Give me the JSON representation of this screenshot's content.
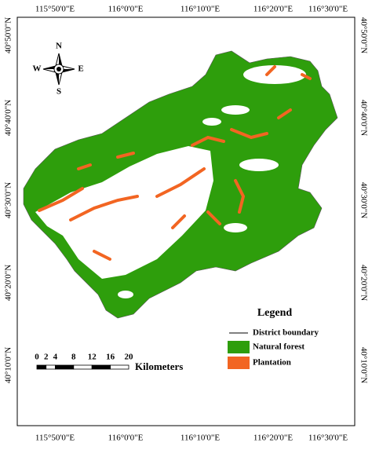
{
  "grid_labels": {
    "top": [
      "115°50'0\"E",
      "116°0'0\"E",
      "116°10'0\"E",
      "116°20'0\"E",
      "116°30'0\"E"
    ],
    "bottom": [
      "115°50'0\"E",
      "116°0'0\"E",
      "116°10'0\"E",
      "116°20'0\"E",
      "116°30'0\"E"
    ],
    "left": [
      "40°50'0\"N",
      "40°40'0\"N",
      "40°30'0\"N",
      "40°20'0\"N",
      "40°10'0\"N"
    ],
    "right": [
      "40°50'0\"N",
      "40°40'0\"N",
      "40°30'0\"N",
      "40°20'0\"N",
      "40°10'0\"N"
    ]
  },
  "compass": {
    "n": "N",
    "s": "S",
    "e": "E",
    "w": "W"
  },
  "scale_bar": {
    "ticks": [
      0,
      2,
      4,
      8,
      12,
      16,
      20
    ],
    "unit": "Kilometers"
  },
  "legend": {
    "title": "Legend",
    "items": [
      {
        "label": "District boundary",
        "color": "#000000"
      },
      {
        "label": "Natural forest",
        "color": "#2e9e0c"
      },
      {
        "label": "Plantation",
        "color": "#f26522"
      }
    ]
  }
}
